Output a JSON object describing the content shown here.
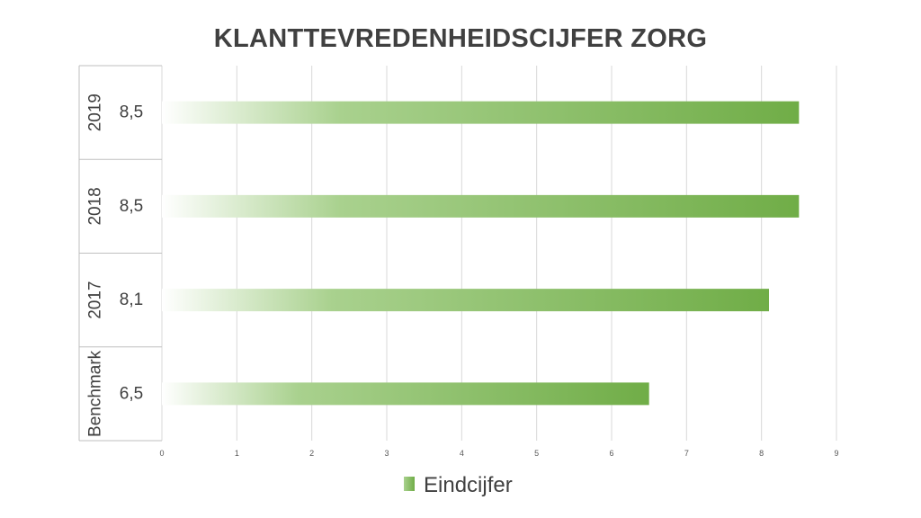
{
  "chart_data": {
    "type": "bar",
    "orientation": "horizontal",
    "title": "KLANTTEVREDENHEIDSCIJFER ZORG",
    "categories": [
      "Benchmark",
      "2017",
      "2018",
      "2019"
    ],
    "value_labels": [
      "6,5",
      "8,1",
      "8,5",
      "8,5"
    ],
    "series": [
      {
        "name": "Eindcijfer",
        "values": [
          6.5,
          8.1,
          8.5,
          8.5
        ]
      }
    ],
    "xlim": [
      0,
      9
    ],
    "xticks": [
      "0",
      "1",
      "2",
      "3",
      "4",
      "5",
      "6",
      "7",
      "8",
      "9"
    ],
    "xlabel": "",
    "ylabel": "",
    "grid": true,
    "legend": {
      "placement": "bottom"
    },
    "bar_gradient": [
      "#ffffff",
      "#a9d18e",
      "#70ad47"
    ]
  }
}
